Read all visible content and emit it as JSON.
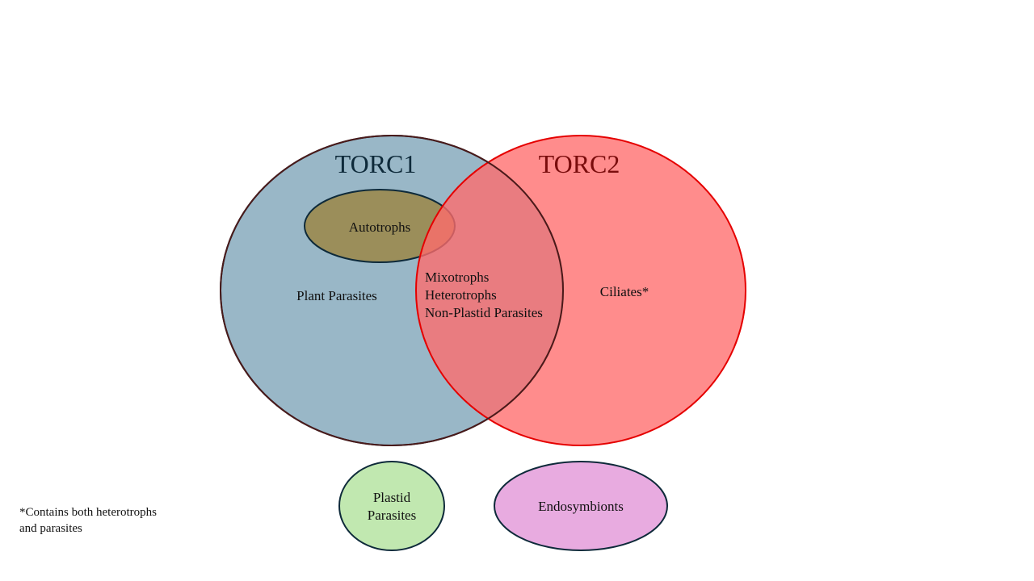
{
  "diagram": {
    "torc1": {
      "title": "TORC1",
      "fill": "#7fa5b9",
      "stroke": "#0e2a3a"
    },
    "torc2": {
      "title": "TORC2",
      "fill": "#ff6b6b",
      "stroke": "#e50000"
    },
    "autotrophs": {
      "label": "Autotrophs",
      "fill": "#9b8e5a",
      "stroke": "#0e2a3a"
    },
    "torc1_only": {
      "label": "Plant Parasites"
    },
    "overlap": {
      "lines": [
        "Mixotrophs",
        "Heterotrophs",
        "Non-Plastid Parasites"
      ]
    },
    "torc2_only": {
      "label": "Ciliates*"
    },
    "plastid_parasites": {
      "lines": [
        "Plastid",
        "Parasites"
      ],
      "fill": "#c1e8b0",
      "stroke": "#0e2a3a"
    },
    "endosymbionts": {
      "label": "Endosymbionts",
      "fill": "#e8abe0",
      "stroke": "#0e2a3a"
    }
  },
  "footnote": {
    "lines": [
      "*Contains both heterotrophs",
      "and parasites"
    ]
  }
}
